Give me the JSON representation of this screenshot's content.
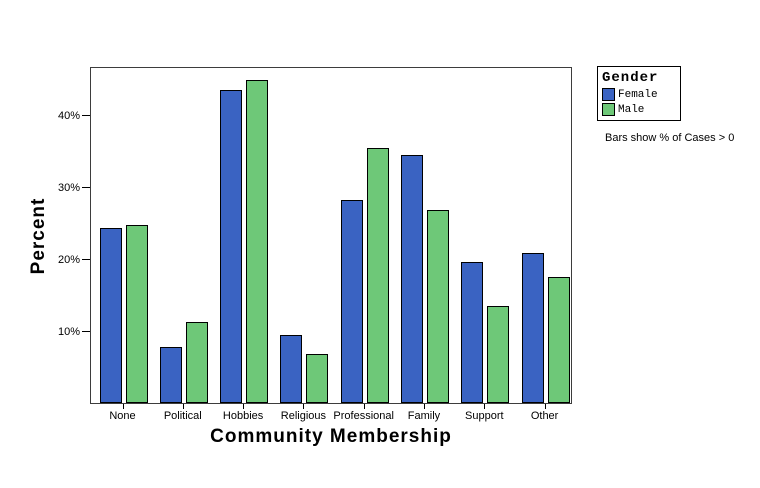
{
  "chart_data": {
    "type": "bar",
    "title": "",
    "xlabel": "Community Membership",
    "ylabel": "Percent",
    "categories": [
      "None",
      "Political",
      "Hobbies",
      "Religious",
      "Professional",
      "Family",
      "Support",
      "Other"
    ],
    "series": [
      {
        "name": "Female",
        "color": "#3A63C2",
        "values": [
          24.3,
          7.8,
          43.4,
          9.5,
          28.2,
          34.4,
          19.6,
          20.9
        ]
      },
      {
        "name": "Male",
        "color": "#6EC878",
        "values": [
          24.7,
          11.2,
          44.8,
          6.8,
          35.4,
          26.8,
          13.5,
          17.5
        ]
      }
    ],
    "ylim": [
      0,
      46.8
    ],
    "y_ticks": [
      10,
      20,
      30,
      40
    ],
    "y_tick_labels": [
      "10%",
      "20%",
      "30%",
      "40%"
    ],
    "grid": false,
    "legend": {
      "title": "Gender",
      "position": "right"
    },
    "annotation": "Bars show % of Cases > 0"
  }
}
